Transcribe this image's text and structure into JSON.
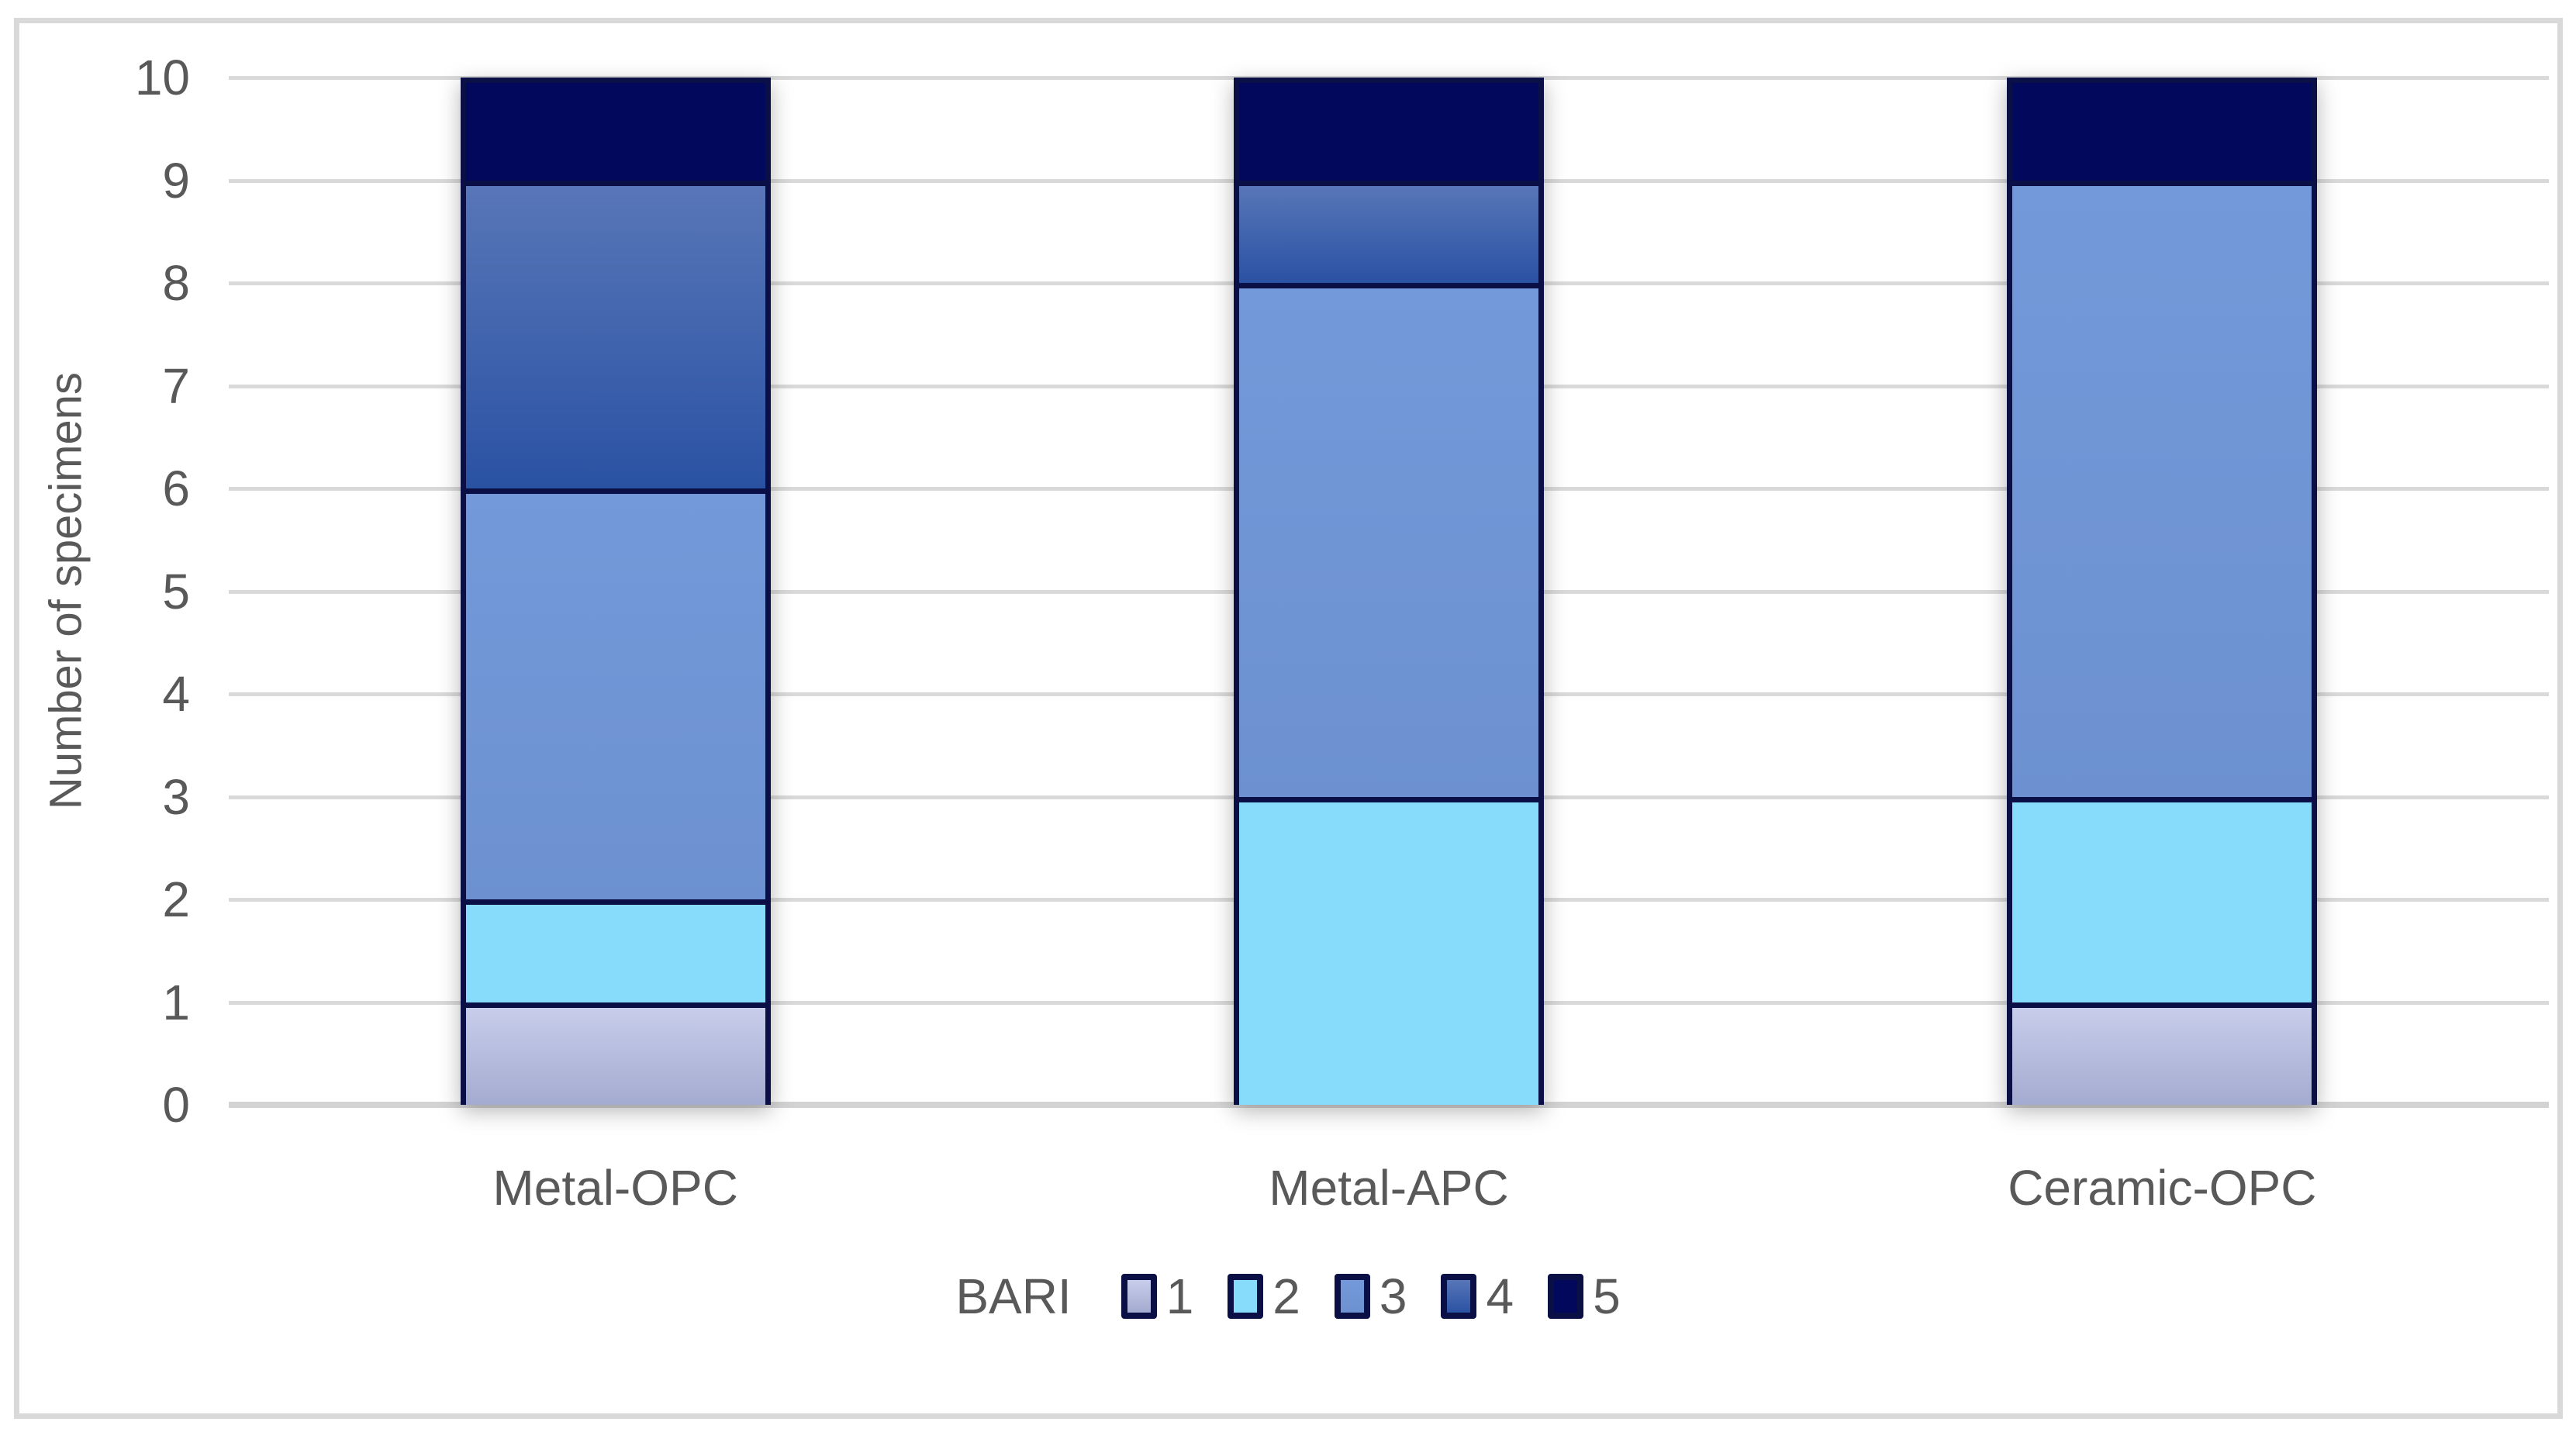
{
  "chart_data": {
    "type": "bar",
    "stacked": true,
    "title": "",
    "xlabel": "",
    "ylabel": "Number of specimens",
    "ylim": [
      0,
      10
    ],
    "yticks": [
      0,
      1,
      2,
      3,
      4,
      5,
      6,
      7,
      8,
      9,
      10
    ],
    "grid": true,
    "categories": [
      "Metal-OPC",
      "Metal-APC",
      "Ceramic-OPC"
    ],
    "series": [
      {
        "name": "1",
        "values": [
          1,
          0,
          1
        ],
        "fill_top": "#c7cdea",
        "fill_bottom": "#a4abd0"
      },
      {
        "name": "2",
        "values": [
          1,
          3,
          2
        ],
        "fill_top": "#87dcfb",
        "fill_bottom": "#87dcfb"
      },
      {
        "name": "3",
        "values": [
          4,
          5,
          6
        ],
        "fill_top": "#7399da",
        "fill_bottom": "#6d91d0"
      },
      {
        "name": "4",
        "values": [
          3,
          1,
          0
        ],
        "fill_top": "#5876b8",
        "fill_bottom": "#2a52a3"
      },
      {
        "name": "5",
        "values": [
          1,
          1,
          1
        ],
        "fill_top": "#02085c",
        "fill_bottom": "#02085c"
      }
    ],
    "legend_title": "BARI",
    "legend_position": "bottom"
  },
  "colors": {
    "segment_border": "#0a1045",
    "gridline": "#d9d9d9",
    "axis_line": "#d3d3d3",
    "figure_border": "#d9d9d9",
    "text": "#595959",
    "background": "#ffffff"
  }
}
